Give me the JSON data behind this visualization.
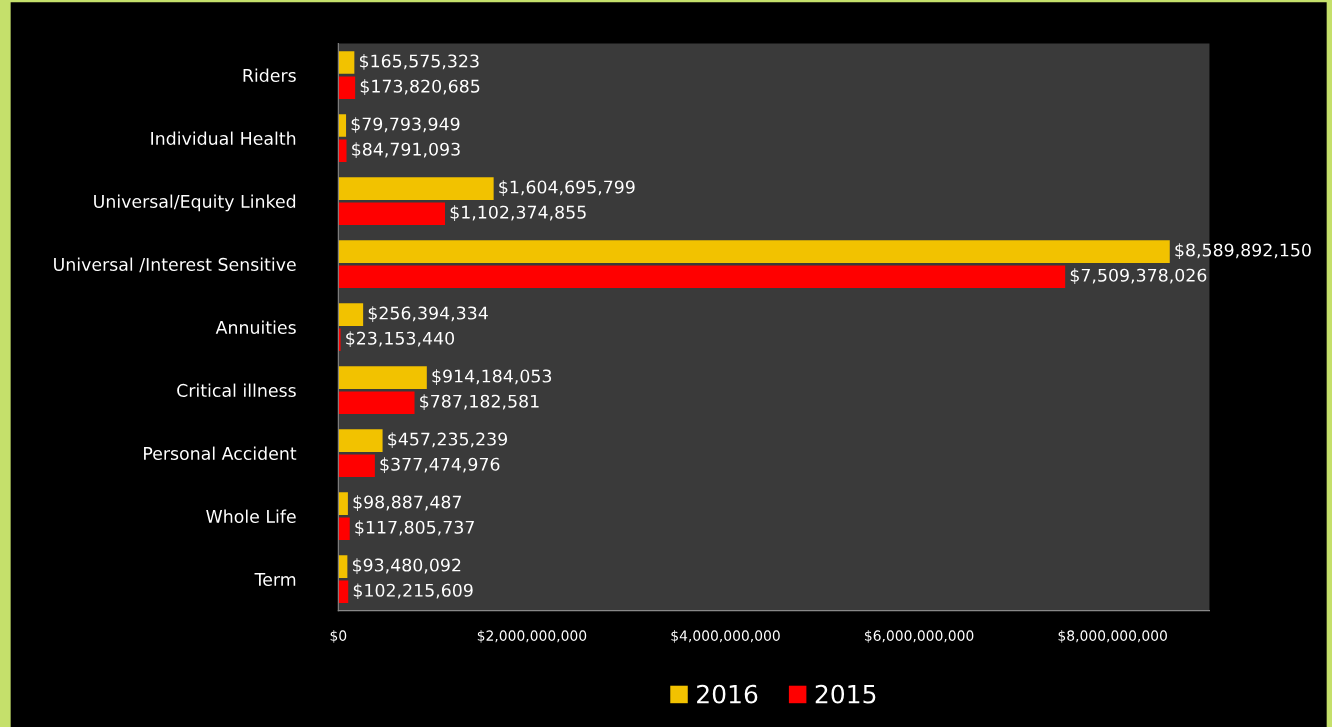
{
  "chart_data": {
    "type": "bar",
    "orientation": "horizontal",
    "categories": [
      "Riders",
      "Individual Health",
      "Universal/Equity Linked",
      "Universal /Interest Sensitive",
      "Annuities",
      "Critical illness",
      "Personal Accident",
      "Whole Life",
      "Term"
    ],
    "series": [
      {
        "name": "2016",
        "color": "#f2c200",
        "values": [
          165575323,
          79793949,
          1604695799,
          8589892150,
          256394334,
          914184053,
          457235239,
          98887487,
          93480092
        ],
        "value_labels": [
          "$165,575,323",
          "$79,793,949",
          "$1,604,695,799",
          "$8,589,892,150",
          "$256,394,334",
          "$914,184,053",
          "$457,235,239",
          "$98,887,487",
          "$93,480,092"
        ]
      },
      {
        "name": "2015",
        "color": "#ff0000",
        "values": [
          173820685,
          84791093,
          1102374855,
          7509378026,
          23153440,
          787182581,
          377474976,
          117805737,
          102215609
        ],
        "value_labels": [
          "$173,820,685",
          "$84,791,093",
          "$1,102,374,855",
          "$7,509,378,026",
          "$23,153,440",
          "$787,182,581",
          "$377,474,976",
          "$117,805,737",
          "$102,215,609"
        ]
      }
    ],
    "xlim": [
      0,
      9000000000
    ],
    "xticks": [
      {
        "value": 0,
        "label": "$0"
      },
      {
        "value": 2000000000,
        "label": "$2,000,000,000"
      },
      {
        "value": 4000000000,
        "label": "$4,000,000,000"
      },
      {
        "value": 6000000000,
        "label": "$6,000,000,000"
      },
      {
        "value": 8000000000,
        "label": "$8,000,000,000"
      }
    ],
    "grid": false,
    "legend": "bottom"
  }
}
